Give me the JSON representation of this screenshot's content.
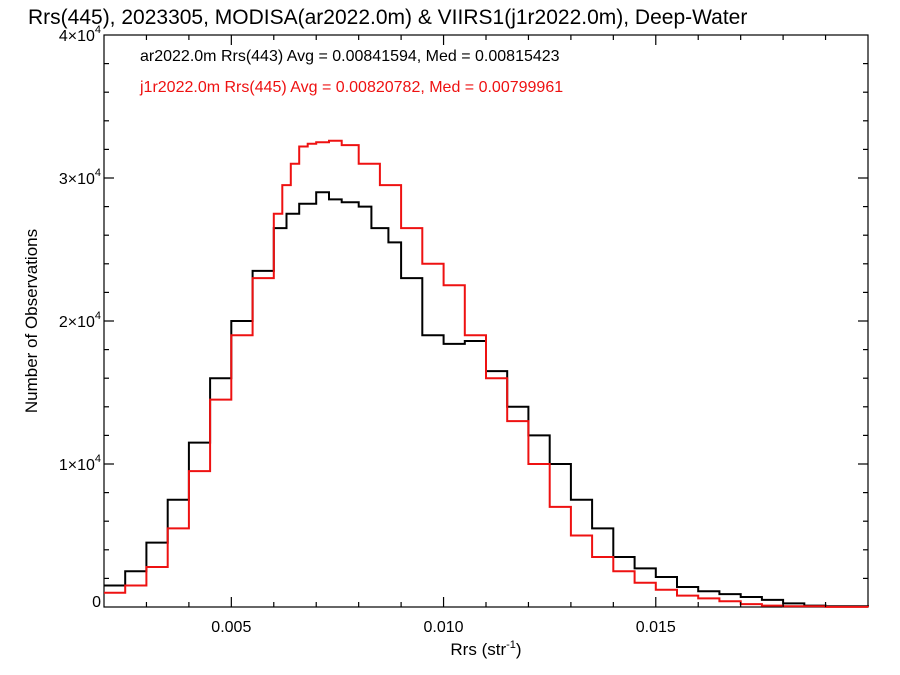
{
  "chart_data": {
    "type": "line",
    "title": "Rrs(445), 2023305, MODISA(ar2022.0m) & VIIRS1(j1r2022.0m), Deep-Water",
    "xlabel": "Rrs (str",
    "xlabel_sup": "-1",
    "xlabel_end": ")",
    "ylabel": "Number of Observations",
    "xlim": [
      0.002,
      0.02
    ],
    "ylim": [
      0,
      40000
    ],
    "x_ticks": [
      {
        "value": 0.005,
        "label": "0.005"
      },
      {
        "value": 0.01,
        "label": "0.010"
      },
      {
        "value": 0.015,
        "label": "0.015"
      }
    ],
    "y_ticks": [
      {
        "value": 0,
        "base": "0",
        "exp": ""
      },
      {
        "value": 10000,
        "base": "1×10",
        "exp": "4"
      },
      {
        "value": 20000,
        "base": "2×10",
        "exp": "4"
      },
      {
        "value": 30000,
        "base": "3×10",
        "exp": "4"
      },
      {
        "value": 40000,
        "base": "4×10",
        "exp": "4"
      }
    ],
    "grid": false,
    "legend_position": "top-left",
    "series": [
      {
        "name": "ar2022.0m Rrs(443) Avg = 0.00841594, Med = 0.00815423",
        "color": "#000000",
        "x": [
          0.002,
          0.0025,
          0.003,
          0.0035,
          0.004,
          0.0045,
          0.005,
          0.0055,
          0.006,
          0.0063,
          0.0066,
          0.007,
          0.0073,
          0.0076,
          0.008,
          0.0083,
          0.0087,
          0.009,
          0.0095,
          0.01,
          0.0105,
          0.011,
          0.0115,
          0.012,
          0.0125,
          0.013,
          0.0135,
          0.014,
          0.0145,
          0.015,
          0.0155,
          0.016,
          0.0165,
          0.017,
          0.0175,
          0.018,
          0.0185,
          0.019,
          0.02
        ],
        "values": [
          1500,
          2500,
          4500,
          7500,
          11500,
          16000,
          20000,
          23500,
          26500,
          27500,
          28200,
          29000,
          28500,
          28300,
          28000,
          26500,
          25500,
          23000,
          19000,
          18400,
          18600,
          16500,
          14000,
          12000,
          10000,
          7500,
          5500,
          3500,
          2700,
          2100,
          1400,
          1100,
          900,
          700,
          500,
          250,
          100,
          50,
          0
        ]
      },
      {
        "name": "j1r2022.0m Rrs(445) Avg = 0.00820782, Med = 0.00799961",
        "color": "#ee1111",
        "x": [
          0.002,
          0.0025,
          0.003,
          0.0035,
          0.004,
          0.0045,
          0.005,
          0.0055,
          0.006,
          0.0062,
          0.0064,
          0.0066,
          0.0068,
          0.007,
          0.0073,
          0.0076,
          0.008,
          0.0085,
          0.009,
          0.0095,
          0.01,
          0.0105,
          0.011,
          0.0115,
          0.012,
          0.0125,
          0.013,
          0.0135,
          0.014,
          0.0145,
          0.015,
          0.0155,
          0.016,
          0.0165,
          0.017,
          0.0175,
          0.018,
          0.019,
          0.02
        ],
        "values": [
          1000,
          1500,
          2800,
          5500,
          9500,
          14500,
          19000,
          23000,
          27500,
          29500,
          31000,
          32200,
          32400,
          32500,
          32600,
          32300,
          31000,
          29500,
          26500,
          24000,
          22500,
          19000,
          16000,
          13000,
          10000,
          7000,
          5000,
          3500,
          2500,
          1700,
          1200,
          800,
          600,
          400,
          200,
          100,
          50,
          10,
          0
        ]
      }
    ]
  }
}
